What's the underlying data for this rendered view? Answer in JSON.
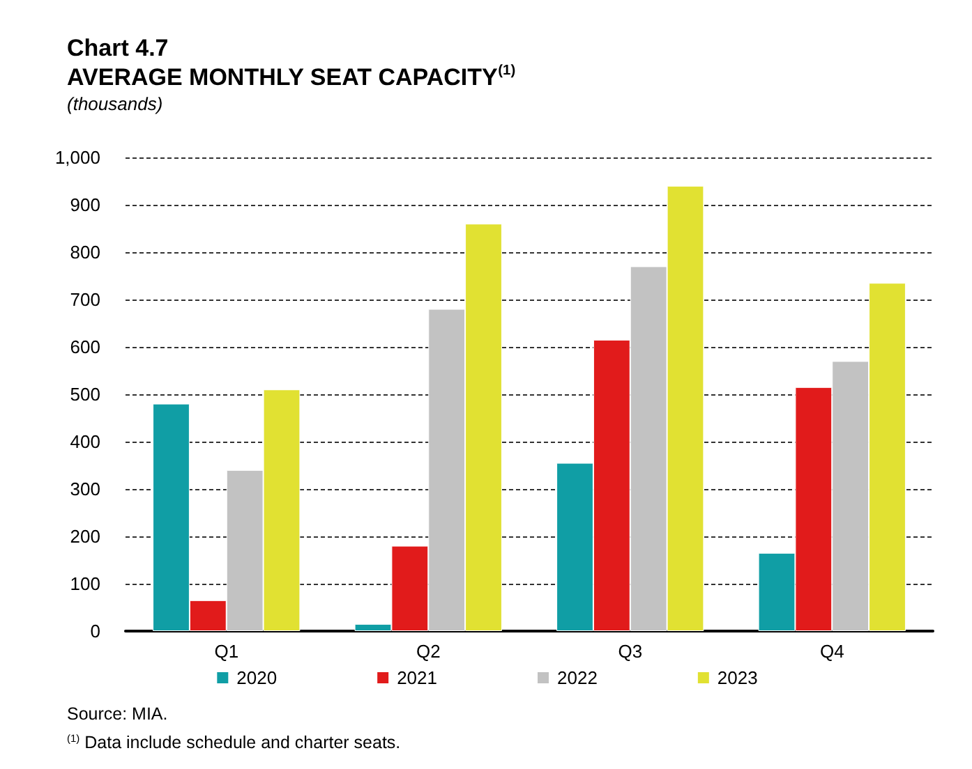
{
  "chart_data": {
    "type": "bar",
    "title": "Chart 4.7",
    "subtitle": "AVERAGE MONTHLY SEAT CAPACITY$^{(1)}$",
    "ylabel": "(thousands)",
    "categories": [
      "Q1",
      "Q2",
      "Q3",
      "Q4"
    ],
    "series": [
      {
        "name": "2020",
        "color": "#109ea5",
        "values": [
          480,
          15,
          355,
          165
        ]
      },
      {
        "name": "2021",
        "color": "#e11b1b",
        "values": [
          65,
          180,
          615,
          515
        ]
      },
      {
        "name": "2022",
        "color": "#c2c2c2",
        "values": [
          340,
          680,
          770,
          570
        ]
      },
      {
        "name": "2023",
        "color": "#e1e132",
        "values": [
          510,
          860,
          940,
          735
        ]
      }
    ],
    "ylim": [
      0,
      1000
    ],
    "yticks": [
      0,
      100,
      200,
      300,
      400,
      500,
      600,
      700,
      800,
      900,
      {
        "value": 1000,
        "label": "1,000"
      }
    ],
    "grid": "y",
    "legend": "bottom",
    "annotations": [
      "Source: MIA.",
      "$^{(1)}$ Data include schedule and charter seats."
    ]
  }
}
